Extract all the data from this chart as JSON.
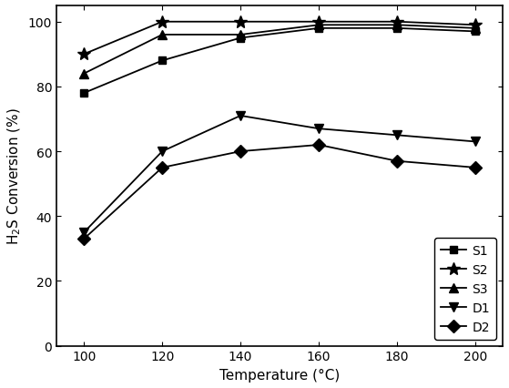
{
  "x": [
    100,
    120,
    140,
    160,
    180,
    200
  ],
  "series": {
    "S1": [
      78,
      88,
      95,
      98,
      98,
      97
    ],
    "S2": [
      90,
      100,
      100,
      100,
      100,
      99
    ],
    "S3": [
      84,
      96,
      96,
      99,
      99,
      98
    ],
    "D1": [
      35,
      60,
      71,
      67,
      65,
      63
    ],
    "D2": [
      33,
      55,
      60,
      62,
      57,
      55
    ]
  },
  "markers": {
    "S1": "s",
    "S2": "*",
    "S3": "^",
    "D1": "v",
    "D2": "D"
  },
  "markersizes": {
    "S1": 6,
    "S2": 10,
    "S3": 7,
    "D1": 7,
    "D2": 7
  },
  "xlabel": "Temperature (°C)",
  "ylabel": "H$_2$S Conversion (%)",
  "xlim": [
    93,
    207
  ],
  "ylim": [
    0,
    105
  ],
  "xticks": [
    100,
    120,
    140,
    160,
    180,
    200
  ],
  "yticks": [
    0,
    20,
    40,
    60,
    80,
    100
  ],
  "legend_loc": "lower right",
  "line_color": "#000000",
  "figsize": [
    5.59,
    4.27
  ],
  "dpi": 100,
  "xlabel_fontsize": 11,
  "ylabel_fontsize": 11,
  "tick_fontsize": 10,
  "legend_fontsize": 10
}
